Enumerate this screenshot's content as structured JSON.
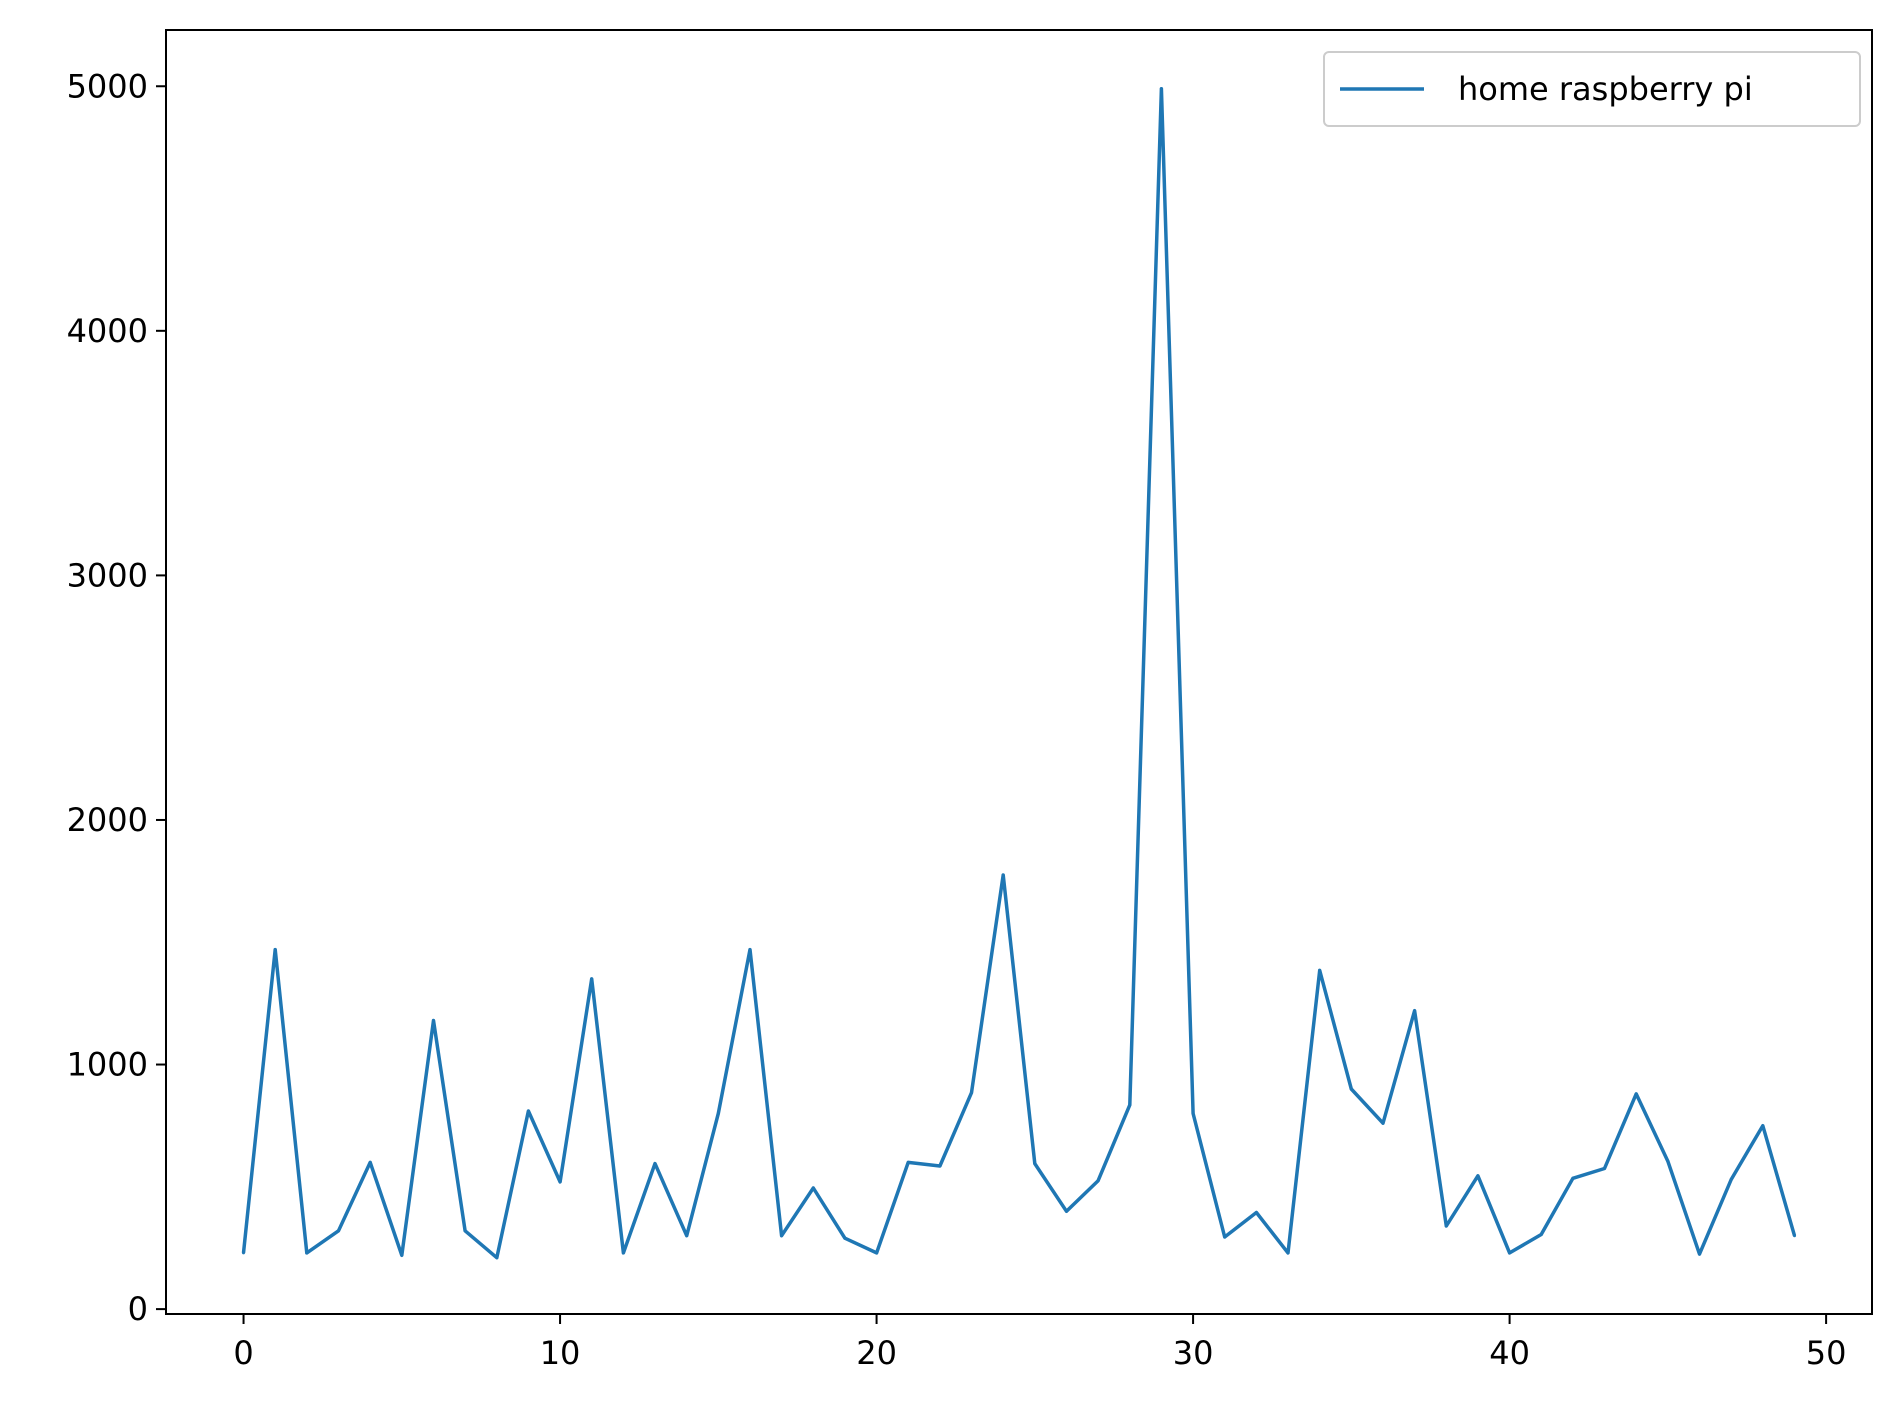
{
  "chart_data": {
    "type": "line",
    "title": "",
    "xlabel": "",
    "ylabel": "",
    "xlim": [
      -2.45,
      51.45
    ],
    "ylim": [
      -20,
      5230
    ],
    "x_ticks": [
      0,
      10,
      20,
      30,
      40,
      50
    ],
    "y_ticks": [
      0,
      1000,
      2000,
      3000,
      4000,
      5000
    ],
    "grid": false,
    "legend_position": "top-right",
    "series": [
      {
        "name": "home raspberry pi",
        "color": "#1f77b4",
        "x": [
          0,
          1,
          2,
          3,
          4,
          5,
          6,
          7,
          8,
          9,
          10,
          11,
          12,
          13,
          14,
          15,
          16,
          17,
          18,
          19,
          20,
          21,
          22,
          23,
          24,
          25,
          26,
          27,
          28,
          29,
          30,
          31,
          32,
          33,
          34,
          35,
          36,
          37,
          38,
          39,
          40,
          41,
          42,
          43,
          44,
          45,
          46,
          47,
          48,
          49
        ],
        "values": [
          230,
          1470,
          230,
          320,
          600,
          220,
          1180,
          320,
          210,
          810,
          520,
          1350,
          230,
          595,
          300,
          800,
          1470,
          300,
          495,
          290,
          230,
          600,
          585,
          885,
          1775,
          595,
          400,
          525,
          835,
          4990,
          800,
          295,
          395,
          230,
          1385,
          900,
          760,
          1220,
          340,
          545,
          230,
          305,
          535,
          575,
          880,
          605,
          225,
          530,
          750,
          300
        ]
      }
    ]
  }
}
